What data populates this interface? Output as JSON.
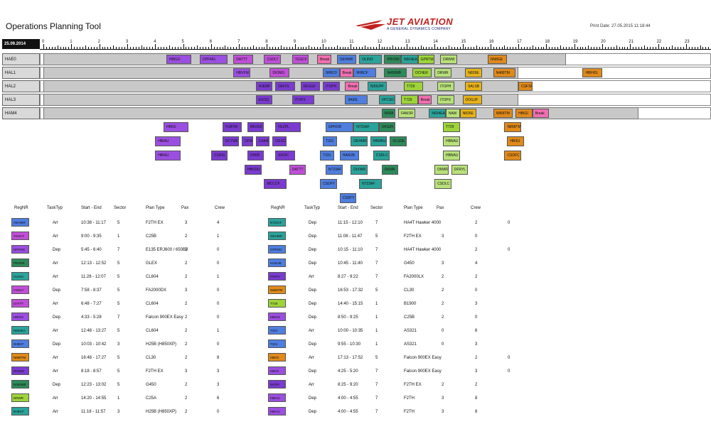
{
  "header": {
    "title": "Operations Planning Tool",
    "print_date": "Print Date: 27.05.2015 11:18:44",
    "logo_text": "JET AVIATION",
    "logo_subtext": "A GENERAL DYNAMICS COMPANY"
  },
  "colors": {
    "red": "#c0211d",
    "navy": "#1b2a7a"
  },
  "timeline": {
    "date": "25.09.2014",
    "hour_labels": [
      "0",
      "1",
      "2",
      "3",
      "4",
      "5",
      "6",
      "7",
      "8",
      "9",
      "10",
      "11",
      "12",
      "13",
      "14",
      "15",
      "16",
      "17",
      "18",
      "19",
      "20",
      "21",
      "22",
      "23"
    ]
  },
  "hangars": [
    {
      "name": "HAE0",
      "shade": [
        0,
        18.7
      ]
    },
    {
      "name": "HAL1",
      "shade": [
        0,
        17
      ]
    },
    {
      "name": "HAL2",
      "shade": [
        0,
        17
      ]
    },
    {
      "name": "HAL3",
      "shade": [
        0,
        17
      ]
    },
    {
      "name": "HAM4",
      "shade": [
        0,
        21.3
      ]
    }
  ],
  "palette": {
    "purple": "#9b4fe0",
    "violet": "#7a3bd0",
    "magenta": "#c04fd8",
    "blue": "#4f7ee0",
    "teal": "#2aa39a",
    "dgreen": "#2e8a5a",
    "lime": "#9ed43a",
    "orange": "#e08a1a",
    "pink": "#f06fb0",
    "gold": "#e6b21a",
    "lightgreen": "#b8e07a",
    "navy": "#3050c0"
  },
  "gantt_blocks": [
    {
      "row": 0,
      "label": "HBIGX",
      "start": 4.4,
      "end": 5.3,
      "color": "purple"
    },
    {
      "row": 0,
      "label": "DPFMG",
      "start": 5.6,
      "end": 6.6,
      "color": "purple"
    },
    {
      "row": 0,
      "label": "DATTT",
      "start": 6.8,
      "end": 7.5,
      "color": "magenta"
    },
    {
      "row": 0,
      "label": "CSDLT",
      "start": 7.9,
      "end": 8.5,
      "color": "magenta"
    },
    {
      "row": 0,
      "label": "TGSCF",
      "start": 8.9,
      "end": 9.5,
      "color": "magenta"
    },
    {
      "row": 0,
      "label": "Break",
      "start": 9.8,
      "end": 10.3,
      "color": "pink"
    },
    {
      "row": 0,
      "label": "OEHMR",
      "start": 10.5,
      "end": 11.2,
      "color": "blue"
    },
    {
      "row": 0,
      "label": "OLINO",
      "start": 11.3,
      "end": 12.1,
      "color": "teal"
    },
    {
      "row": 0,
      "label": "PRVDR",
      "start": 12.2,
      "end": 12.8,
      "color": "dgreen"
    },
    {
      "row": 0,
      "label": "N604EA",
      "start": 12.8,
      "end": 13.4,
      "color": "teal"
    },
    {
      "row": 0,
      "label": "GPRTM",
      "start": 13.4,
      "end": 14.0,
      "color": "lime"
    },
    {
      "row": 0,
      "label": "DRWW",
      "start": 14.2,
      "end": 14.8,
      "color": "lightgreen"
    },
    {
      "row": 0,
      "label": "NN8GE",
      "start": 15.9,
      "end": 16.6,
      "color": "orange"
    },
    {
      "row": 1,
      "label": "HBVFM",
      "start": 6.8,
      "end": 7.4,
      "color": "purple"
    },
    {
      "row": 1,
      "label": "DIOMG",
      "start": 8.1,
      "end": 8.8,
      "color": "magenta"
    },
    {
      "row": 1,
      "label": "9HBCF",
      "start": 10.0,
      "end": 10.6,
      "color": "blue"
    },
    {
      "row": 1,
      "label": "Break",
      "start": 10.6,
      "end": 11.1,
      "color": "pink"
    },
    {
      "row": 1,
      "label": "9HBCF",
      "start": 11.1,
      "end": 11.9,
      "color": "blue"
    },
    {
      "row": 1,
      "label": "N450MB",
      "start": 12.2,
      "end": 13.0,
      "color": "dgreen"
    },
    {
      "row": 1,
      "label": "OCHER",
      "start": 13.2,
      "end": 13.9,
      "color": "lime"
    },
    {
      "row": 1,
      "label": "DRWR",
      "start": 14.0,
      "end": 14.6,
      "color": "lightgreen"
    },
    {
      "row": 1,
      "label": "N826E",
      "start": 15.1,
      "end": 15.7,
      "color": "gold"
    },
    {
      "row": 1,
      "label": "N468TM",
      "start": 16.1,
      "end": 16.9,
      "color": "orange"
    },
    {
      "row": 1,
      "label": "HBFRS",
      "start": 19.3,
      "end": 20.0,
      "color": "orange"
    },
    {
      "row": 2,
      "label": "HJEMF",
      "start": 7.6,
      "end": 8.2,
      "color": "violet"
    },
    {
      "row": 2,
      "label": "DEFDL",
      "start": 8.3,
      "end": 9.0,
      "color": "violet"
    },
    {
      "row": 2,
      "label": "DEGGF",
      "start": 9.2,
      "end": 9.9,
      "color": "violet"
    },
    {
      "row": 2,
      "label": "ITOPH",
      "start": 10.0,
      "end": 10.6,
      "color": "violet"
    },
    {
      "row": 2,
      "label": "Break",
      "start": 10.8,
      "end": 11.3,
      "color": "pink"
    },
    {
      "row": 2,
      "label": "N30UPF",
      "start": 11.6,
      "end": 12.3,
      "color": "teal"
    },
    {
      "row": 2,
      "label": "T729",
      "start": 12.9,
      "end": 13.6,
      "color": "lime"
    },
    {
      "row": 2,
      "label": "ITOPH",
      "start": 14.1,
      "end": 14.7,
      "color": "lightgreen"
    },
    {
      "row": 2,
      "label": "9ALSB",
      "start": 15.1,
      "end": 15.7,
      "color": "gold"
    },
    {
      "row": 2,
      "label": "CSFSF",
      "start": 17.0,
      "end": 17.5,
      "color": "orange"
    },
    {
      "row": 3,
      "label": "EXOQ",
      "start": 7.6,
      "end": 8.2,
      "color": "violet"
    },
    {
      "row": 3,
      "label": "ITOPX",
      "start": 8.9,
      "end": 9.7,
      "color": "violet"
    },
    {
      "row": 3,
      "label": "9A90L",
      "start": 10.8,
      "end": 11.6,
      "color": "blue"
    },
    {
      "row": 3,
      "label": "VPCSD",
      "start": 12.0,
      "end": 12.6,
      "color": "teal"
    },
    {
      "row": 3,
      "label": "T729",
      "start": 12.8,
      "end": 13.4,
      "color": "lime"
    },
    {
      "row": 3,
      "label": "Break",
      "start": 13.4,
      "end": 13.9,
      "color": "pink"
    },
    {
      "row": 3,
      "label": "ITOPX",
      "start": 14.1,
      "end": 14.7,
      "color": "lightgreen"
    },
    {
      "row": 3,
      "label": "OOGJP",
      "start": 15.0,
      "end": 15.7,
      "color": "gold"
    },
    {
      "row": 4,
      "label": "N4SB",
      "start": 12.1,
      "end": 12.6,
      "color": "dgreen"
    },
    {
      "row": 4,
      "label": "FAWJR",
      "start": 12.7,
      "end": 13.3,
      "color": "lightgreen"
    },
    {
      "row": 4,
      "label": "N604EA",
      "start": 13.8,
      "end": 14.4,
      "color": "teal"
    },
    {
      "row": 4,
      "label": "NAW",
      "start": 14.4,
      "end": 14.9,
      "color": "lightgreen"
    },
    {
      "row": 4,
      "label": "N826E",
      "start": 14.9,
      "end": 15.5,
      "color": "gold"
    },
    {
      "row": 4,
      "label": "N868TM",
      "start": 16.1,
      "end": 16.8,
      "color": "orange"
    },
    {
      "row": 4,
      "label": "HBIGI",
      "start": 16.9,
      "end": 17.5,
      "color": "orange"
    },
    {
      "row": 4,
      "label": "Break",
      "start": 17.5,
      "end": 18.1,
      "color": "pink"
    }
  ],
  "unassigned_blocks": [
    {
      "label": "HBIGI",
      "col": 4.3,
      "r": 0,
      "w": 0.9,
      "color": "purple"
    },
    {
      "label": "YUBTM",
      "col": 6.4,
      "r": 0,
      "w": 0.7,
      "color": "violet"
    },
    {
      "label": "MNJSD",
      "col": 7.3,
      "r": 0,
      "w": 0.6,
      "color": "violet"
    },
    {
      "label": "FEZPL",
      "col": 8.3,
      "r": 0,
      "w": 0.9,
      "color": "violet"
    },
    {
      "label": "GPROD",
      "col": 10.1,
      "r": 0,
      "w": 1.0,
      "color": "blue"
    },
    {
      "label": "N723AF",
      "col": 11.1,
      "r": 0,
      "w": 0.9,
      "color": "teal"
    },
    {
      "label": "OKSZK",
      "col": 12.0,
      "r": 0,
      "w": 0.6,
      "color": "dgreen"
    },
    {
      "label": "T729",
      "col": 14.3,
      "r": 0,
      "w": 0.6,
      "color": "lime"
    },
    {
      "label": "N868TM",
      "col": 16.5,
      "r": 0,
      "w": 0.6,
      "color": "orange"
    },
    {
      "label": "HBIAU",
      "col": 4.0,
      "r": 1,
      "w": 0.9,
      "color": "purple"
    },
    {
      "label": "OCYME",
      "col": 6.4,
      "r": 1,
      "w": 0.6,
      "color": "violet"
    },
    {
      "label": "DFWIF",
      "col": 7.1,
      "r": 1,
      "w": 0.4,
      "color": "violet"
    },
    {
      "label": "C4A4C",
      "col": 7.6,
      "r": 1,
      "w": 0.5,
      "color": "violet"
    },
    {
      "label": "OSSCR",
      "col": 8.2,
      "r": 1,
      "w": 0.5,
      "color": "violet"
    },
    {
      "label": "T331",
      "col": 10.0,
      "r": 1,
      "w": 0.5,
      "color": "blue"
    },
    {
      "label": "OEHMR",
      "col": 11.0,
      "r": 1,
      "w": 0.6,
      "color": "teal"
    },
    {
      "label": "HBMNU",
      "col": 11.7,
      "r": 1,
      "w": 0.6,
      "color": "teal"
    },
    {
      "label": "OLSDE",
      "col": 12.4,
      "r": 1,
      "w": 0.6,
      "color": "dgreen"
    },
    {
      "label": "HBNAU",
      "col": 14.3,
      "r": 1,
      "w": 0.6,
      "color": "lightgreen"
    },
    {
      "label": "HBIGI",
      "col": 16.6,
      "r": 1,
      "w": 0.6,
      "color": "orange"
    },
    {
      "label": "HBIAU",
      "col": 4.0,
      "r": 2,
      "w": 0.9,
      "color": "purple"
    },
    {
      "label": "CSDIG",
      "col": 6.0,
      "r": 2,
      "w": 0.6,
      "color": "violet"
    },
    {
      "label": "DIWR",
      "col": 7.3,
      "r": 2,
      "w": 0.6,
      "color": "violet"
    },
    {
      "label": "9XOFI",
      "col": 8.3,
      "r": 2,
      "w": 0.7,
      "color": "violet"
    },
    {
      "label": "T331",
      "col": 9.9,
      "r": 2,
      "w": 0.5,
      "color": "blue"
    },
    {
      "label": "HAWJB",
      "col": 10.6,
      "r": 2,
      "w": 0.7,
      "color": "blue"
    },
    {
      "label": "CSDLC",
      "col": 11.8,
      "r": 2,
      "w": 0.6,
      "color": "teal"
    },
    {
      "label": "HBNAU",
      "col": 14.3,
      "r": 2,
      "w": 0.6,
      "color": "lightgreen"
    },
    {
      "label": "CSDFC",
      "col": 16.5,
      "r": 2,
      "w": 0.6,
      "color": "orange"
    },
    {
      "label": "HBVDU",
      "col": 7.2,
      "r": 3,
      "w": 0.6,
      "color": "violet"
    },
    {
      "label": "DATTT",
      "col": 8.8,
      "r": 3,
      "w": 0.6,
      "color": "magenta"
    },
    {
      "label": "N723AF",
      "col": 10.1,
      "r": 3,
      "w": 0.6,
      "color": "blue"
    },
    {
      "label": "DIXWR",
      "col": 11.0,
      "r": 3,
      "w": 0.6,
      "color": "teal"
    },
    {
      "label": "OKMN",
      "col": 12.1,
      "r": 3,
      "w": 0.6,
      "color": "dgreen"
    },
    {
      "label": "DIWIR",
      "col": 14.0,
      "r": 3,
      "w": 0.5,
      "color": "lightgreen"
    },
    {
      "label": "DFRYL",
      "col": 14.6,
      "r": 3,
      "w": 0.6,
      "color": "lightgreen"
    },
    {
      "label": "MCCCF",
      "col": 7.9,
      "r": 4,
      "w": 0.8,
      "color": "violet"
    },
    {
      "label": "CSDFY",
      "col": 9.9,
      "r": 4,
      "w": 0.6,
      "color": "blue"
    },
    {
      "label": "N723AF",
      "col": 11.3,
      "r": 4,
      "w": 0.8,
      "color": "teal"
    },
    {
      "label": "CSDLC",
      "col": 14.0,
      "r": 4,
      "w": 0.6,
      "color": "lightgreen"
    },
    {
      "label": "CSDFY",
      "col": 10.6,
      "r": 5,
      "w": 0.6,
      "color": "blue"
    }
  ],
  "table_headers": [
    "RegNR",
    "TaskTyp",
    "Start - End",
    "Sector",
    "Plan Type",
    "Pax",
    "Crew"
  ],
  "table_left": [
    {
      "reg": "OEHMR",
      "color": "blue",
      "task": "Arr",
      "time": "10:38 - 11:17",
      "sector": "5",
      "plan": "F2TH EX",
      "pax": "3",
      "crew": "4",
      "extra": ""
    },
    {
      "reg": "TGSCF",
      "color": "magenta",
      "task": "Arr",
      "time": "9:00 - 9:35",
      "sector": "1",
      "plan": "C25B",
      "pax": "2",
      "crew": "1",
      "extra": ""
    },
    {
      "reg": "DPFMG",
      "color": "purple",
      "task": "Dep",
      "time": "5:45 - 6:40",
      "sector": "7",
      "plan": "E135 ERJ600 / 650BJ",
      "pax": "3",
      "crew": "0",
      "extra": ""
    },
    {
      "reg": "PRVDR",
      "color": "dgreen",
      "task": "Arr",
      "time": "12:13 - 12:52",
      "sector": "5",
      "plan": "GLEX",
      "pax": "2",
      "crew": "0",
      "extra": ""
    },
    {
      "reg": "OLINO",
      "color": "teal",
      "task": "Arr",
      "time": "11:28 - 12:07",
      "sector": "5",
      "plan": "CL604",
      "pax": "2",
      "crew": "1",
      "extra": ""
    },
    {
      "reg": "CSDLT",
      "color": "magenta",
      "task": "Dep",
      "time": "7:58 - 8:37",
      "sector": "5",
      "plan": "FA2000DX",
      "pax": "3",
      "crew": "0",
      "extra": ""
    },
    {
      "reg": "DATTT",
      "color": "magenta",
      "task": "Arr",
      "time": "6:48 - 7:27",
      "sector": "5",
      "plan": "CL604",
      "pax": "2",
      "crew": "0",
      "extra": ""
    },
    {
      "reg": "HBIGX",
      "color": "purple",
      "task": "Dep",
      "time": "4:33 - 5:28",
      "sector": "7",
      "plan": "Falcon 900EX Easy",
      "pax": "2",
      "crew": "0",
      "extra": ""
    },
    {
      "reg": "N604EA",
      "color": "teal",
      "task": "Arr",
      "time": "12:48 - 13:27",
      "sector": "5",
      "plan": "CL604",
      "pax": "2",
      "crew": "1",
      "extra": ""
    },
    {
      "reg": "9HBCF",
      "color": "blue",
      "task": "Dep",
      "time": "10:03 - 10:42",
      "sector": "3",
      "plan": "H25B (H850XP)",
      "pax": "2",
      "crew": "0",
      "extra": ""
    },
    {
      "reg": "N868TM",
      "color": "orange",
      "task": "Arr",
      "time": "16:48 - 17:27",
      "sector": "5",
      "plan": "CL30",
      "pax": "2",
      "crew": "8",
      "extra": ""
    },
    {
      "reg": "DIOMG",
      "color": "violet",
      "task": "Arr",
      "time": "8:18 - 8:57",
      "sector": "5",
      "plan": "F2TH EX",
      "pax": "3",
      "crew": "3",
      "extra": ""
    },
    {
      "reg": "N450MB",
      "color": "dgreen",
      "task": "Dep",
      "time": "12:23 - 13:02",
      "sector": "5",
      "plan": "G450",
      "pax": "2",
      "crew": "3",
      "extra": ""
    },
    {
      "reg": "DRWR",
      "color": "lime",
      "task": "Arr",
      "time": "14:20 - 14:55",
      "sector": "1",
      "plan": "C25A",
      "pax": "2",
      "crew": "6",
      "extra": ""
    },
    {
      "reg": "9HBCF",
      "color": "teal",
      "task": "Arr",
      "time": "11:18 - 11:57",
      "sector": "3",
      "plan": "H25B (H850XP)",
      "pax": "2",
      "crew": "0",
      "extra": ""
    }
  ],
  "table_right": [
    {
      "reg": "N723AF",
      "color": "teal",
      "task": "Dep",
      "time": "11:15 - 12:10",
      "sector": "7",
      "plan": "HA4T Hawker 4000",
      "pax": "",
      "crew": "2",
      "extra": "0"
    },
    {
      "reg": "OEHMR",
      "color": "teal",
      "task": "Dep",
      "time": "11:08 - 11:47",
      "sector": "5",
      "plan": "F2TH EX",
      "pax": "3",
      "crew": "0",
      "extra": ""
    },
    {
      "reg": "GPROD",
      "color": "blue",
      "task": "Dep",
      "time": "10:15 - 11:10",
      "sector": "7",
      "plan": "HA4T Hawker 4000",
      "pax": "",
      "crew": "2",
      "extra": "0"
    },
    {
      "reg": "HAWJB",
      "color": "blue",
      "task": "Dep",
      "time": "10:45 - 11:40",
      "sector": "7",
      "plan": "G450",
      "pax": "3",
      "crew": "4",
      "extra": ""
    },
    {
      "reg": "ITOPH",
      "color": "violet",
      "task": "Arr",
      "time": "8:27 - 9:22",
      "sector": "7",
      "plan": "FA2000LX",
      "pax": "2",
      "crew": "2",
      "extra": ""
    },
    {
      "reg": "N868TM",
      "color": "orange",
      "task": "Dep",
      "time": "16:53 - 17:32",
      "sector": "5",
      "plan": "CL30",
      "pax": "2",
      "crew": "0",
      "extra": ""
    },
    {
      "reg": "T729",
      "color": "lime",
      "task": "Dep",
      "time": "14:40 - 15:15",
      "sector": "1",
      "plan": "B1900",
      "pax": "2",
      "crew": "3",
      "extra": ""
    },
    {
      "reg": "HBIGX",
      "color": "purple",
      "task": "Dep",
      "time": "8:50 - 9:25",
      "sector": "1",
      "plan": "C25B",
      "pax": "2",
      "crew": "0",
      "extra": ""
    },
    {
      "reg": "T331",
      "color": "blue",
      "task": "Arr",
      "time": "10:00 - 10:35",
      "sector": "1",
      "plan": "AS321",
      "pax": "0",
      "crew": "6",
      "extra": ""
    },
    {
      "reg": "T331",
      "color": "blue",
      "task": "Dep",
      "time": "9:55 - 10:30",
      "sector": "1",
      "plan": "AS321",
      "pax": "0",
      "crew": "3",
      "extra": ""
    },
    {
      "reg": "HBIGI",
      "color": "orange",
      "task": "Arr",
      "time": "17:13 - 17:52",
      "sector": "5",
      "plan": "Falcon 900EX Easy",
      "pax": "",
      "crew": "2",
      "extra": "0"
    },
    {
      "reg": "HBIGI",
      "color": "purple",
      "task": "Dep",
      "time": "4:25 - 5:20",
      "sector": "7",
      "plan": "Falcon 900EX Easy",
      "pax": "",
      "crew": "3",
      "extra": "0"
    },
    {
      "reg": "9XOFI",
      "color": "violet",
      "task": "Arr",
      "time": "8:25 - 9:20",
      "sector": "7",
      "plan": "F2TH EX",
      "pax": "2",
      "crew": "2",
      "extra": ""
    },
    {
      "reg": "HBIAU",
      "color": "purple",
      "task": "Dep",
      "time": "4:00 - 4:55",
      "sector": "7",
      "plan": "F2TH",
      "pax": "3",
      "crew": "8",
      "extra": ""
    },
    {
      "reg": "HBIAU",
      "color": "purple",
      "task": "Dep",
      "time": "4:00 - 4:55",
      "sector": "7",
      "plan": "F2TH",
      "pax": "3",
      "crew": "8",
      "extra": ""
    }
  ]
}
